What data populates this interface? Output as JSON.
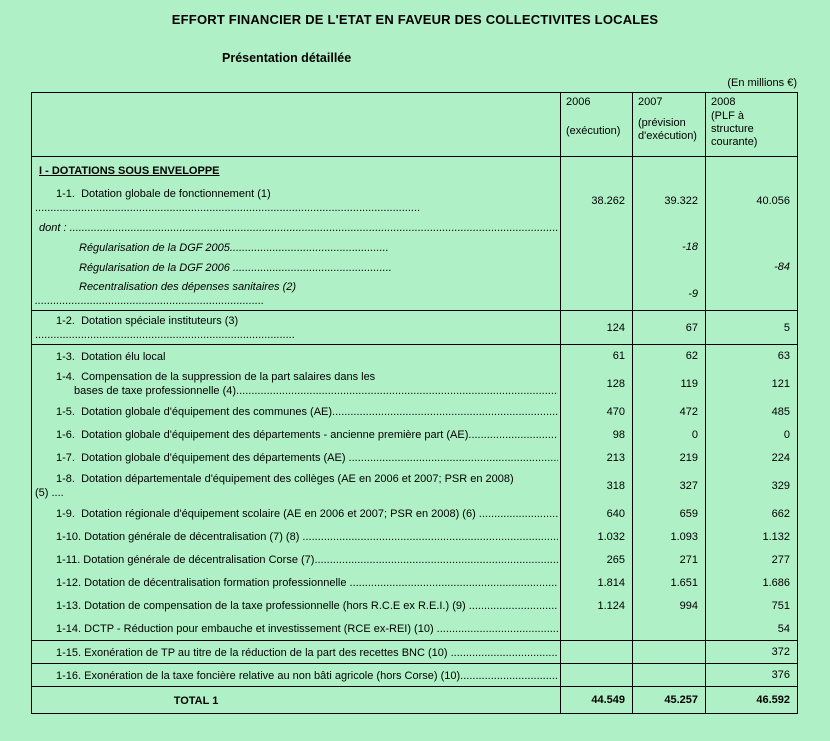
{
  "colors": {
    "background": "#b0f0c6",
    "border": "#000000",
    "text": "#000000"
  },
  "page": {
    "title": "EFFORT FINANCIER DE L'ETAT EN FAVEUR DES COLLECTIVITES LOCALES",
    "subtitle": "Présentation détaillée",
    "unit_note": "(En millions €)"
  },
  "table": {
    "columns": [
      {
        "year": "2006",
        "sub": "(exécution)"
      },
      {
        "year": "2007",
        "sub": "(prévision d'exécution)"
      },
      {
        "year": "2008",
        "sub": "(PLF à structure courante)"
      }
    ],
    "rows": [
      {
        "type": "section",
        "label": "I - DOTATIONS SOUS ENVELOPPE",
        "values": [
          "",
          "",
          ""
        ]
      },
      {
        "type": "item",
        "label": "1-1.  Dotation globale de fonctionnement (1)",
        "line2": "..............................................................................................................................",
        "values": [
          "38.262",
          "39.322",
          "40.056"
        ]
      },
      {
        "type": "dont",
        "label": "dont : ......................................................................................................................................................................................",
        "values": [
          "",
          "",
          ""
        ]
      },
      {
        "type": "sub",
        "label": "Régularisation de la DGF 2005....................................................",
        "values": [
          "",
          "-18",
          ""
        ]
      },
      {
        "type": "sub",
        "label": "Régularisation de la DGF 2006 ....................................................",
        "values": [
          "",
          "",
          "-84"
        ]
      },
      {
        "type": "sub",
        "label": "Recentralisation des dépenses sanitaires (2)",
        "line2": "...........................................................................",
        "values": [
          "",
          "-9",
          ""
        ]
      },
      {
        "type": "item",
        "label": "1-2.  Dotation spéciale instituteurs (3)",
        "line2": ".....................................................................................",
        "values": [
          "124",
          "67",
          "5"
        ],
        "border_top": true
      },
      {
        "type": "item",
        "label": "1-3.  Dotation élu local",
        "values": [
          "61",
          "62",
          "63"
        ],
        "border_top": true
      },
      {
        "type": "item",
        "label": "1-4.  Compensation de la suppression de la part salaires dans les",
        "line2": "bases de taxe professionnelle (4)..........................................................................................................................",
        "line2_indent": true,
        "values": [
          "128",
          "119",
          "121"
        ]
      },
      {
        "type": "item",
        "label": "1-5.  Dotation globale d'équipement des communes (AE)...........................................................................................................",
        "values": [
          "470",
          "472",
          "485"
        ]
      },
      {
        "type": "item",
        "label": "1-6.  Dotation globale d'équipement des départements - ancienne première part (AE).....................................................",
        "values": [
          "98",
          "0",
          "0"
        ]
      },
      {
        "type": "item",
        "label": "1-7.  Dotation globale d'équipement des départements (AE) ......................................................................................................",
        "values": [
          "213",
          "219",
          "224"
        ]
      },
      {
        "type": "item",
        "label": "1-8.  Dotation départementale d'équipement des collèges (AE en 2006 et 2007; PSR en 2008)",
        "line2": "(5) ....",
        "values": [
          "318",
          "327",
          "329"
        ]
      },
      {
        "type": "item",
        "label": "1-9.  Dotation régionale d'équipement scolaire (AE en 2006 et 2007; PSR en 2008) (6) ..........................................",
        "values": [
          "640",
          "659",
          "662"
        ]
      },
      {
        "type": "item",
        "label": "1-10. Dotation générale de décentralisation (7) (8) ......................................................................................................................",
        "values": [
          "1.032",
          "1.093",
          "1.132"
        ]
      },
      {
        "type": "item",
        "label": "1-11. Dotation générale de décentralisation Corse (7)...............................................................................................................",
        "values": [
          "265",
          "271",
          "277"
        ]
      },
      {
        "type": "item",
        "label": "1-12. Dotation de décentralisation formation professionnelle ...................................................................................................",
        "values": [
          "1.814",
          "1.651",
          "1.686"
        ]
      },
      {
        "type": "item",
        "label": "1-13. Dotation de compensation de la taxe professionnelle (hors R.C.E ex R.E.I.) (9) ..........................................",
        "values": [
          "1.124",
          "994",
          "751"
        ]
      },
      {
        "type": "item",
        "label": "1-14. DCTP - Réduction pour embauche et investissement (RCE ex-REI) (10) ......................................................",
        "values": [
          "",
          "",
          "54"
        ]
      },
      {
        "type": "item",
        "label": "1-15. Exonération de TP au titre de la réduction de la part des recettes BNC (10) ................................................",
        "values": [
          "",
          "",
          "372"
        ],
        "border_top": true
      },
      {
        "type": "item",
        "label": "1-16. Exonération de la taxe foncière relative au non bâti agricole (hors Corse) (10)...............................................",
        "values": [
          "",
          "",
          "376"
        ],
        "border_top": true
      },
      {
        "type": "total",
        "label": "TOTAL 1",
        "values": [
          "44.549",
          "45.257",
          "46.592"
        ],
        "border_top": true
      }
    ]
  }
}
